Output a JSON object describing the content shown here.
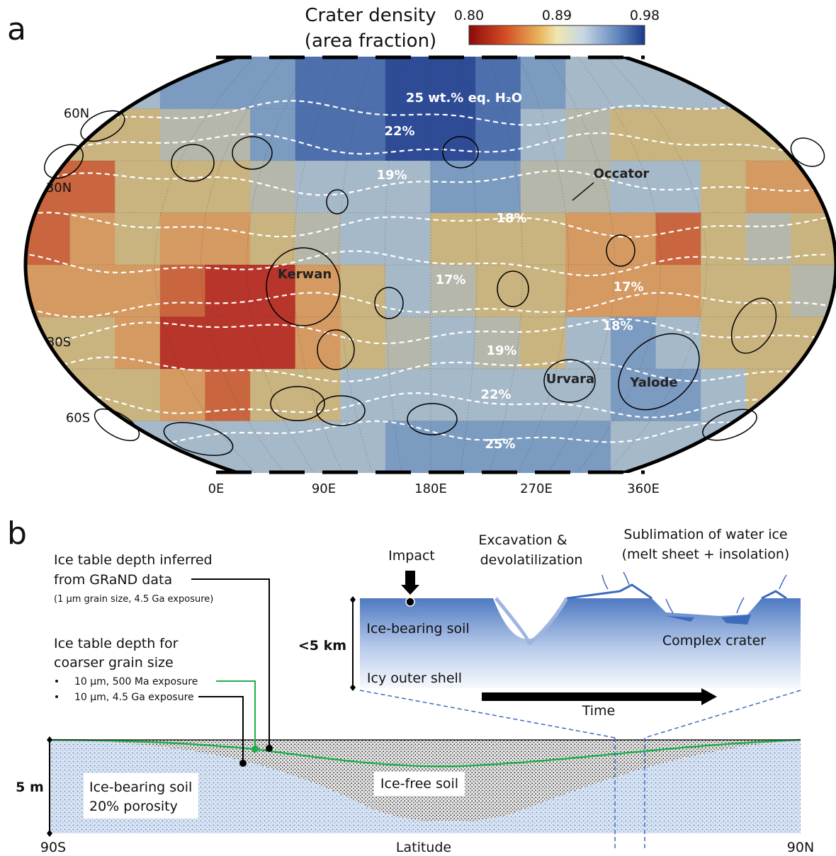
{
  "panel_a": {
    "label": "a",
    "colorbar": {
      "title": [
        "Crater density",
        "(area fraction)"
      ],
      "ticks": [
        "0.80",
        "0.89",
        "0.98"
      ]
    },
    "latitude_labels": [
      "60N",
      "30N",
      "30S",
      "60S"
    ],
    "longitude_labels": [
      "0E",
      "90E",
      "180E",
      "270E",
      "360E"
    ],
    "contour_labels": [
      "25 wt.% eq. H₂O",
      "22%",
      "19%",
      "18%",
      "17%",
      "17%",
      "18%",
      "19%",
      "22%",
      "25%"
    ],
    "crater_names": [
      "Occator",
      "Kerwan",
      "Urvara",
      "Yalode"
    ]
  },
  "panel_b": {
    "label": "b",
    "grand_note": [
      "Ice table depth inferred",
      "from GRaND data",
      "(1 µm grain size, 4.5 Ga exposure)"
    ],
    "coarse_note": [
      "Ice table depth for",
      "coarser grain size"
    ],
    "coarse_bullets": [
      "10 µm, 500 Ma exposure",
      "10 µm, 4.5 Ga exposure"
    ],
    "inset": {
      "impact": "Impact",
      "excavation": [
        "Excavation &",
        "devolatilization"
      ],
      "sublimation": [
        "Sublimation of water ice",
        "(melt sheet + insolation)"
      ],
      "depth": "<5 km",
      "soil": "Ice-bearing soil",
      "crater": "Complex crater",
      "shell": "Icy outer shell",
      "time": "Time"
    },
    "section": {
      "depth": "5 m",
      "soil": [
        "Ice-bearing soil",
        "20% porosity"
      ],
      "free_soil": "Ice-free soil",
      "left": "90S",
      "axis": "Latitude",
      "right": "90N"
    }
  }
}
